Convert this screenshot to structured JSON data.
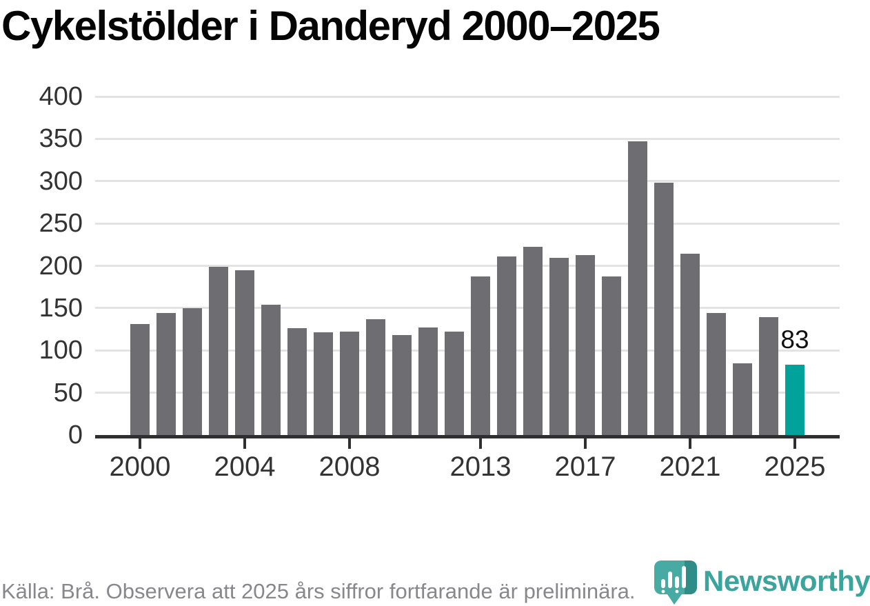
{
  "title": "Cykelstölder i Danderyd 2000–2025",
  "source_note": "Källa: Brå. Observera att 2025 års siffror fortfarande är preliminära.",
  "branding": {
    "name": "Newsworthy",
    "icon": "bar-chart-bubble-pin-icon"
  },
  "colors": {
    "bar_default": "#6e6d71",
    "bar_highlight": "#00a29a",
    "gridline": "#e3e3e3",
    "axis": "#2f2f32",
    "tick_label": "#333333",
    "title": "#050505",
    "caption": "#87878c",
    "brand_teal": "#3aa49d",
    "icon_teal": "#47aaa3",
    "icon_teal_dark": "#2e8d87"
  },
  "chart_data": {
    "type": "bar",
    "title": "Cykelstölder i Danderyd 2000–2025",
    "xlabel": "",
    "ylabel": "",
    "ylim": [
      0,
      400
    ],
    "y_ticks": [
      0,
      50,
      100,
      150,
      200,
      250,
      300,
      350,
      400
    ],
    "grid": "horizontal",
    "legend": "none",
    "categories": [
      2000,
      2001,
      2002,
      2003,
      2004,
      2005,
      2006,
      2007,
      2008,
      2009,
      2010,
      2011,
      2012,
      2013,
      2014,
      2015,
      2016,
      2017,
      2018,
      2019,
      2020,
      2021,
      2022,
      2023,
      2024,
      2025
    ],
    "values": [
      131,
      144,
      150,
      199,
      195,
      154,
      126,
      121,
      122,
      137,
      118,
      127,
      122,
      187,
      211,
      222,
      209,
      213,
      187,
      347,
      298,
      214,
      144,
      85,
      139,
      83
    ],
    "x_tick_labels": [
      "2000",
      "2004",
      "2008",
      "2013",
      "2017",
      "2021",
      "2025"
    ],
    "highlight_category": 2025,
    "annotations": [
      {
        "x": 2025,
        "y": 83,
        "text": "83"
      }
    ]
  }
}
